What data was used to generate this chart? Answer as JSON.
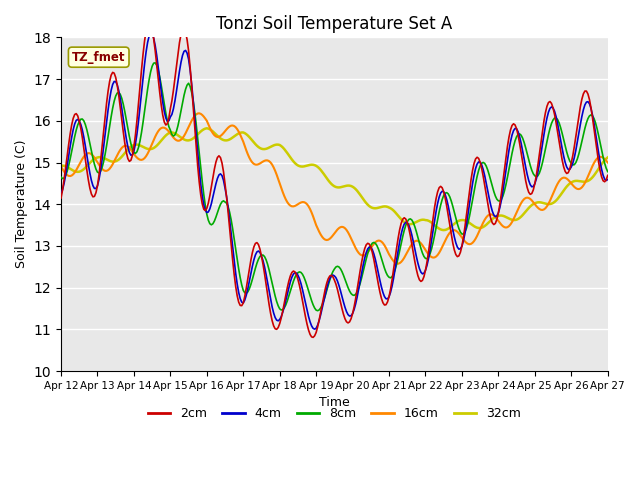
{
  "title": "Tonzi Soil Temperature Set A",
  "xlabel": "Time",
  "ylabel": "Soil Temperature (C)",
  "ylim": [
    10.0,
    18.0
  ],
  "yticks": [
    10.0,
    11.0,
    12.0,
    13.0,
    14.0,
    15.0,
    16.0,
    17.0,
    18.0
  ],
  "xtick_labels": [
    "Apr 12",
    "Apr 13",
    "Apr 14",
    "Apr 15",
    "Apr 16",
    "Apr 17",
    "Apr 18",
    "Apr 19",
    "Apr 20",
    "Apr 21",
    "Apr 22",
    "Apr 23",
    "Apr 24",
    "Apr 25",
    "Apr 26",
    "Apr 27"
  ],
  "colors": {
    "2cm": "#cc0000",
    "4cm": "#0000cc",
    "8cm": "#00aa00",
    "16cm": "#ff8800",
    "32cm": "#cccc00"
  },
  "legend_label": "TZ_fmet",
  "plot_bg": "#e8e8e8"
}
